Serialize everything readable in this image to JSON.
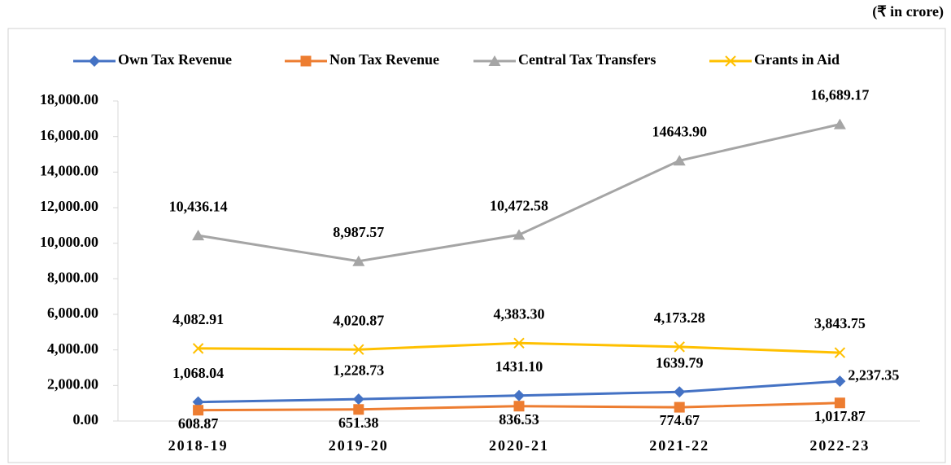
{
  "chart_data": {
    "type": "line",
    "subtitle": "(₹ in crore)",
    "categories": [
      "2018-19",
      "2019-20",
      "2020-21",
      "2021-22",
      "2022-23"
    ],
    "series": [
      {
        "name": "Own Tax Revenue",
        "color": "#4472c4",
        "marker": "diamond",
        "label_position": "above",
        "values": [
          1068.04,
          1228.73,
          1431.1,
          1639.79,
          2237.35
        ],
        "value_labels": [
          "1,068.04",
          "1,228.73",
          "1431.10",
          "1639.79",
          "2,237.35"
        ]
      },
      {
        "name": "Non Tax Revenue",
        "color": "#ed7d31",
        "marker": "square",
        "label_position": "below",
        "values": [
          608.87,
          651.38,
          836.53,
          774.67,
          1017.87
        ],
        "value_labels": [
          "608.87",
          "651.38",
          "836.53",
          "774.67",
          "1,017.87"
        ]
      },
      {
        "name": "Central Tax Transfers",
        "color": "#a5a5a5",
        "marker": "triangle",
        "label_position": "above",
        "values": [
          10436.14,
          8987.57,
          10472.58,
          14643.9,
          16689.17
        ],
        "value_labels": [
          "10,436.14",
          "8,987.57",
          "10,472.58",
          "14643.90",
          "16,689.17"
        ]
      },
      {
        "name": "Grants in Aid",
        "color": "#ffc000",
        "marker": "x",
        "label_position": "above",
        "values": [
          4082.91,
          4020.87,
          4383.3,
          4173.28,
          3843.75
        ],
        "value_labels": [
          "4,082.91",
          "4,020.87",
          "4,383.30",
          "4,173.28",
          "3,843.75"
        ]
      }
    ],
    "ylim": [
      0,
      18000
    ],
    "yticks": [
      {
        "value": 0,
        "label": "0.00"
      },
      {
        "value": 2000,
        "label": "2,000.00"
      },
      {
        "value": 4000,
        "label": "4,000.00"
      },
      {
        "value": 6000,
        "label": "6,000.00"
      },
      {
        "value": 8000,
        "label": "8,000.00"
      },
      {
        "value": 10000,
        "label": "10,000.00"
      },
      {
        "value": 12000,
        "label": "12,000.00"
      },
      {
        "value": 14000,
        "label": "14,000.00"
      },
      {
        "value": 16000,
        "label": "16,000.00"
      },
      {
        "value": 18000,
        "label": "18,000.00"
      }
    ],
    "legend": "top",
    "grid": false
  }
}
